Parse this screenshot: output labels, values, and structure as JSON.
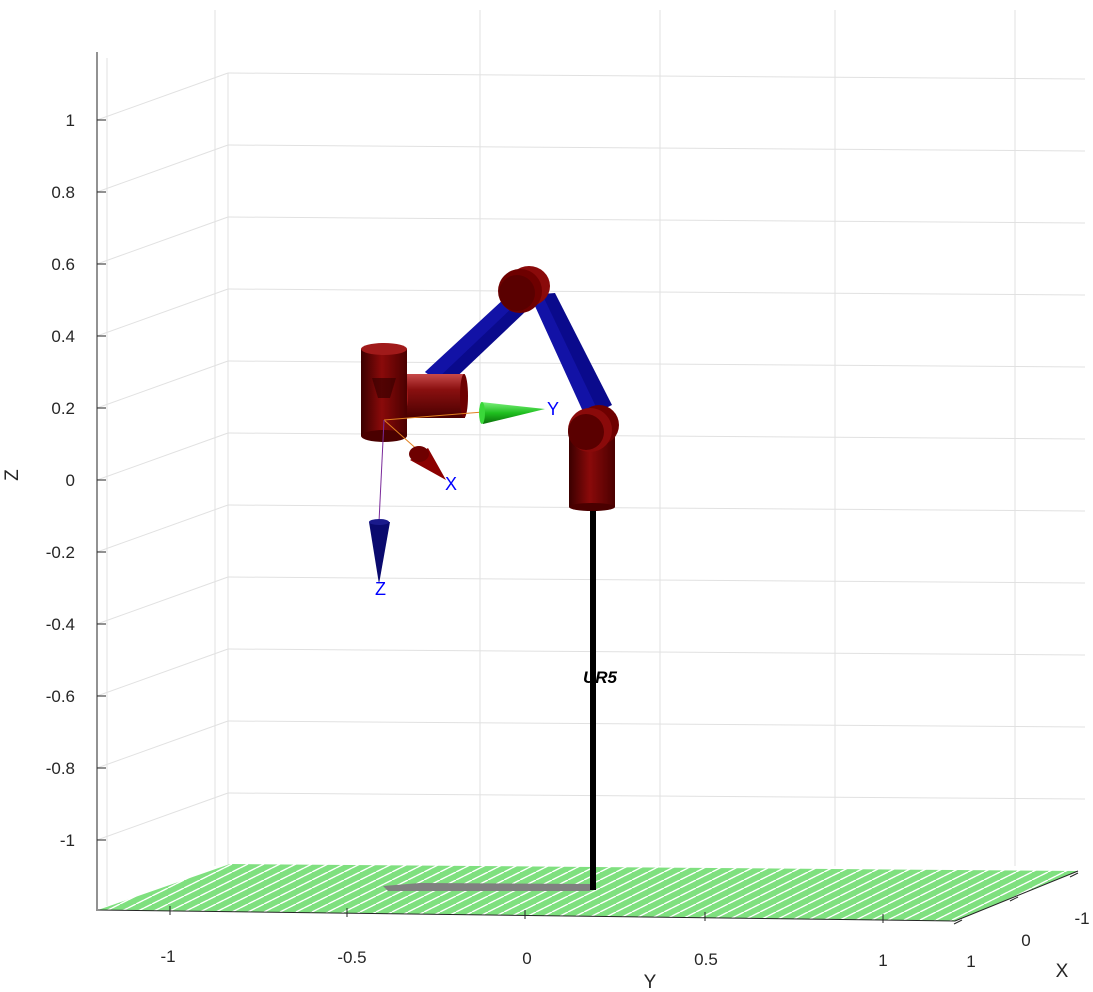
{
  "axes": {
    "z": {
      "label": "Z",
      "ticks": [
        "1",
        "0.8",
        "0.6",
        "0.4",
        "0.2",
        "0",
        "-0.2",
        "-0.4",
        "-0.6",
        "-0.8",
        "-1"
      ]
    },
    "y": {
      "label": "Y",
      "ticks": [
        "-1",
        "-0.5",
        "0",
        "0.5",
        "1"
      ]
    },
    "x": {
      "label": "X",
      "ticks": [
        "-1",
        "0",
        "1"
      ]
    }
  },
  "robot": {
    "name": "UR5"
  },
  "tool_frame": {
    "x_label": "X",
    "y_label": "Y",
    "z_label": "Z"
  },
  "colors": {
    "link": "#0a0a8c",
    "joint": "#6e0000",
    "floor": "#7fe07f",
    "pedestal": "#000000",
    "grid": "#e1e1e1",
    "frame_x": "#8b0000",
    "frame_y": "#1fbf1f",
    "frame_z": "#0a0a6e",
    "label": "#0000ff"
  }
}
